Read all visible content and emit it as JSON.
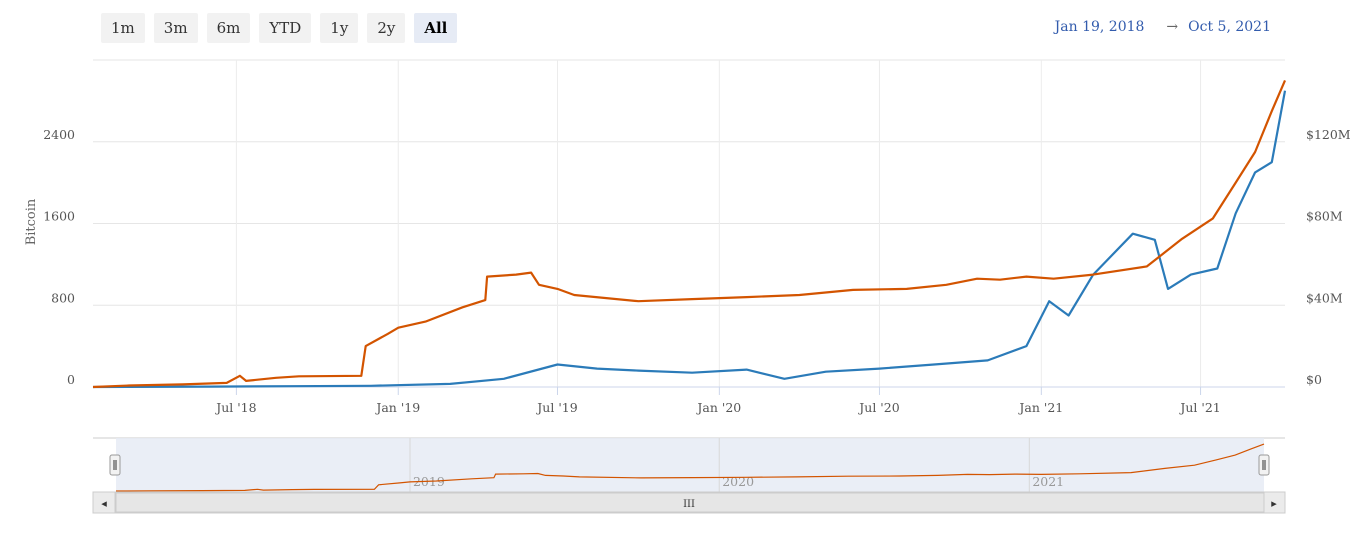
{
  "toolbar": {
    "ranges": [
      "1m",
      "3m",
      "6m",
      "YTD",
      "1y",
      "2y",
      "All"
    ],
    "selected": "All"
  },
  "date_range": {
    "from": "Jan 19, 2018",
    "arrow": "→",
    "to": "Oct 5, 2021"
  },
  "navigator": {
    "labels": [
      "2019",
      "2020",
      "2021"
    ],
    "scroll_grip": "III",
    "left_arrow": "◂",
    "right_arrow": "▸"
  },
  "colors": {
    "bitcoin_series": "#d35400",
    "usd_series": "#2b7bb9",
    "grid": "#e6e6e6",
    "navigator_fill": "#e6ebf5"
  },
  "chart_data": {
    "type": "line",
    "title": "",
    "xlabel": "",
    "ylabel": "Bitcoin",
    "ylabel_right": "",
    "x_range": [
      "2018-01-19",
      "2021-10-05"
    ],
    "x_ticks": [
      "Jul '18",
      "Jan '19",
      "Jul '19",
      "Jan '20",
      "Jul '20",
      "Jan '21",
      "Jul '21"
    ],
    "y_ticks_left": [
      "0",
      "800",
      "1600",
      "2400"
    ],
    "y_ticks_right": [
      "$0",
      "$40M",
      "$80M",
      "$120M"
    ],
    "ylim_left": [
      0,
      3200
    ],
    "ylim_right": [
      0,
      160000000
    ],
    "grid": true,
    "series": [
      {
        "axis": "left",
        "points": [
          [
            "2018-01-19",
            0
          ],
          [
            "2018-03-01",
            15
          ],
          [
            "2018-05-01",
            25
          ],
          [
            "2018-06-20",
            40
          ],
          [
            "2018-07-05",
            110
          ],
          [
            "2018-07-12",
            60
          ],
          [
            "2018-08-15",
            90
          ],
          [
            "2018-09-10",
            105
          ],
          [
            "2018-11-20",
            110
          ],
          [
            "2018-11-25",
            400
          ],
          [
            "2018-12-20",
            520
          ],
          [
            "2019-01-01",
            580
          ],
          [
            "2019-02-01",
            640
          ],
          [
            "2019-03-15",
            780
          ],
          [
            "2019-04-10",
            850
          ],
          [
            "2019-04-12",
            1080
          ],
          [
            "2019-05-15",
            1100
          ],
          [
            "2019-06-01",
            1120
          ],
          [
            "2019-06-10",
            1000
          ],
          [
            "2019-07-01",
            960
          ],
          [
            "2019-07-20",
            900
          ],
          [
            "2019-10-01",
            840
          ],
          [
            "2019-12-01",
            860
          ],
          [
            "2020-02-01",
            880
          ],
          [
            "2020-04-01",
            900
          ],
          [
            "2020-06-01",
            950
          ],
          [
            "2020-08-01",
            960
          ],
          [
            "2020-09-15",
            1000
          ],
          [
            "2020-10-20",
            1060
          ],
          [
            "2020-11-15",
            1050
          ],
          [
            "2020-12-15",
            1080
          ],
          [
            "2021-01-15",
            1060
          ],
          [
            "2021-03-01",
            1100
          ],
          [
            "2021-05-01",
            1180
          ],
          [
            "2021-06-10",
            1450
          ],
          [
            "2021-07-15",
            1650
          ],
          [
            "2021-08-10",
            2000
          ],
          [
            "2021-09-01",
            2300
          ],
          [
            "2021-09-20",
            2700
          ],
          [
            "2021-10-05",
            3000
          ]
        ]
      },
      {
        "axis": "right",
        "points": [
          [
            "2018-01-19",
            0
          ],
          [
            "2018-06-01",
            200000
          ],
          [
            "2018-09-01",
            400000
          ],
          [
            "2018-12-01",
            600000
          ],
          [
            "2019-03-01",
            1500000
          ],
          [
            "2019-05-01",
            4000000
          ],
          [
            "2019-07-01",
            11000000
          ],
          [
            "2019-08-15",
            9000000
          ],
          [
            "2019-10-01",
            8000000
          ],
          [
            "2019-12-01",
            7000000
          ],
          [
            "2020-02-01",
            8500000
          ],
          [
            "2020-03-15",
            4000000
          ],
          [
            "2020-05-01",
            7500000
          ],
          [
            "2020-07-01",
            9000000
          ],
          [
            "2020-09-01",
            11000000
          ],
          [
            "2020-11-01",
            13000000
          ],
          [
            "2020-12-15",
            20000000
          ],
          [
            "2021-01-10",
            42000000
          ],
          [
            "2021-02-01",
            35000000
          ],
          [
            "2021-03-01",
            55000000
          ],
          [
            "2021-04-15",
            75000000
          ],
          [
            "2021-05-10",
            72000000
          ],
          [
            "2021-05-25",
            48000000
          ],
          [
            "2021-06-20",
            55000000
          ],
          [
            "2021-07-20",
            58000000
          ],
          [
            "2021-08-10",
            85000000
          ],
          [
            "2021-09-01",
            105000000
          ],
          [
            "2021-09-20",
            110000000
          ],
          [
            "2021-10-05",
            145000000
          ]
        ]
      }
    ]
  }
}
